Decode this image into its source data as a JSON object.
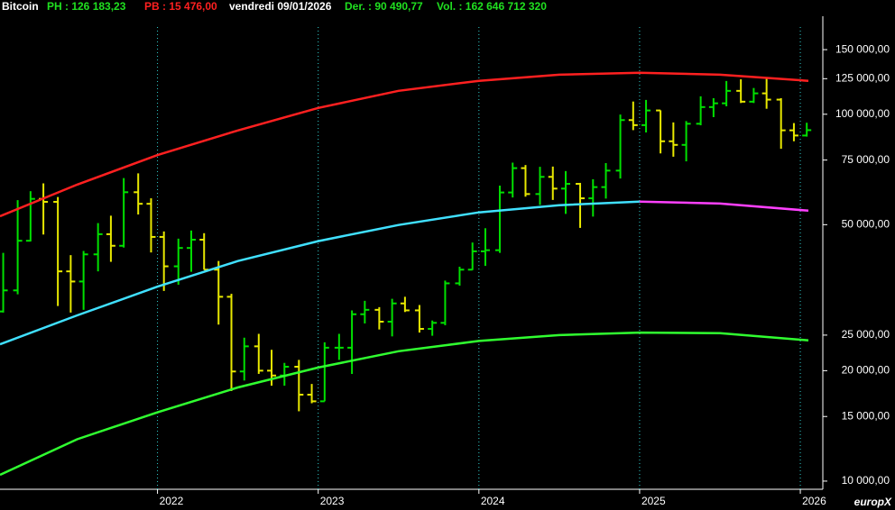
{
  "header": {
    "ticker": "Bitcoin",
    "high": "PH : 126 183,23",
    "low": "PB : 15 476,00",
    "date": "vendredi 09/01/2026",
    "last": "Der. : 90 490,77",
    "volume": "Vol. : 162 646 712 320"
  },
  "logo": "europX",
  "chart_data": {
    "type": "ohlc",
    "log_scale": true,
    "grid": true,
    "up_color": "#00e000",
    "down_color": "#e8e800",
    "xlim": [
      2021.02,
      2026.14
    ],
    "xticks": [
      2022,
      2023,
      2024,
      2025,
      2026
    ],
    "ylim": [
      9500,
      185000
    ],
    "yticks": [
      {
        "value": 10000,
        "label": "10 000,00"
      },
      {
        "value": 15000,
        "label": "15 000,00"
      },
      {
        "value": 20000,
        "label": "20 000,00"
      },
      {
        "value": 25000,
        "label": "25 000,00"
      },
      {
        "value": 50000,
        "label": "50 000,00"
      },
      {
        "value": 75000,
        "label": "75 000,00"
      },
      {
        "value": 100000,
        "label": "100 000,00"
      },
      {
        "value": 125000,
        "label": "125 000,00"
      },
      {
        "value": 150000,
        "label": "150 000,00"
      }
    ],
    "x": [
      2021.04,
      2021.13,
      2021.21,
      2021.29,
      2021.38,
      2021.46,
      2021.54,
      2021.63,
      2021.71,
      2021.79,
      2021.88,
      2021.96,
      2022.04,
      2022.13,
      2022.21,
      2022.29,
      2022.38,
      2022.46,
      2022.54,
      2022.63,
      2022.71,
      2022.79,
      2022.88,
      2022.96,
      2023.04,
      2023.13,
      2023.21,
      2023.29,
      2023.38,
      2023.46,
      2023.54,
      2023.63,
      2023.71,
      2023.79,
      2023.88,
      2023.96,
      2024.04,
      2024.13,
      2024.21,
      2024.29,
      2024.38,
      2024.46,
      2024.54,
      2024.63,
      2024.71,
      2024.79,
      2024.88,
      2024.96,
      2025.04,
      2025.13,
      2025.21,
      2025.29,
      2025.38,
      2025.46,
      2025.54,
      2025.63,
      2025.71,
      2025.79,
      2025.88,
      2025.96,
      2026.04
    ],
    "open": [
      29000,
      33100,
      45200,
      58800,
      57700,
      37300,
      35000,
      41500,
      47100,
      43800,
      61300,
      57000,
      46300,
      38500,
      43200,
      45500,
      37700,
      31800,
      19900,
      23300,
      20000,
      19400,
      20500,
      17200,
      16500,
      23100,
      23100,
      28500,
      29300,
      27200,
      30500,
      29200,
      26000,
      27000,
      34600,
      37700,
      42300,
      42600,
      61200,
      71300,
      60600,
      67500,
      62700,
      64600,
      59000,
      63300,
      70200,
      96400,
      93400,
      102400,
      84400,
      82500,
      94200,
      104600,
      107100,
      115800,
      108200,
      114000,
      109600,
      90400,
      87500
    ],
    "high": [
      41900,
      58300,
      61700,
      64800,
      59500,
      41300,
      42400,
      50500,
      52900,
      67000,
      69000,
      59000,
      47900,
      45800,
      48200,
      47400,
      39800,
      32400,
      24600,
      25200,
      22800,
      21000,
      21400,
      18400,
      23900,
      25200,
      29200,
      31000,
      29800,
      31400,
      31800,
      30200,
      27400,
      35200,
      38400,
      44700,
      48900,
      63900,
      73800,
      72700,
      71900,
      72000,
      70000,
      65000,
      66500,
      73600,
      99800,
      108300,
      109400,
      102500,
      95000,
      95800,
      111900,
      110600,
      123200,
      124500,
      117900,
      126200,
      110600,
      94600,
      94800
    ],
    "low": [
      28800,
      32300,
      45000,
      47000,
      30000,
      28800,
      29300,
      37300,
      39600,
      43300,
      53300,
      42000,
      33000,
      34300,
      37200,
      37700,
      26700,
      17600,
      18800,
      19600,
      18200,
      18200,
      15500,
      16300,
      16500,
      21400,
      19600,
      26900,
      25900,
      24800,
      28900,
      25400,
      24900,
      26600,
      34100,
      37600,
      38600,
      41900,
      59300,
      59600,
      56600,
      58400,
      53500,
      49000,
      52600,
      58900,
      66800,
      90500,
      89200,
      78200,
      76600,
      74400,
      93300,
      98200,
      105100,
      107300,
      107300,
      103500,
      80500,
      84400,
      86900
    ],
    "close": [
      33100,
      45200,
      58800,
      57700,
      37300,
      35000,
      41500,
      47100,
      43800,
      61300,
      57000,
      46300,
      38500,
      43200,
      45500,
      37700,
      31800,
      19900,
      23300,
      20000,
      19400,
      20500,
      17200,
      16500,
      23100,
      23100,
      28500,
      29300,
      27200,
      30500,
      29200,
      26000,
      27000,
      34600,
      37700,
      42300,
      42600,
      61200,
      71300,
      60600,
      67500,
      62700,
      64600,
      59000,
      63300,
      70200,
      96400,
      93400,
      102400,
      84400,
      82500,
      94200,
      104600,
      107100,
      115800,
      108200,
      114000,
      109600,
      90400,
      87500,
      90500
    ],
    "curve_x": [
      2021.02,
      2021.5,
      2022,
      2022.5,
      2023,
      2023.5,
      2024,
      2024.5,
      2025,
      2025.5,
      2026.05
    ],
    "curves": [
      {
        "color": "#ff2020",
        "values": [
          52700,
          64300,
          77400,
          90300,
          104000,
          115800,
          123300,
          128200,
          129800,
          128200,
          123300
        ]
      },
      {
        "color": "#40e0ff",
        "values": [
          23600,
          28300,
          33900,
          39800,
          45100,
          49900,
          54000,
          56500,
          57800,
          null,
          null
        ]
      },
      {
        "color": "#ff40ff",
        "values": [
          null,
          null,
          null,
          null,
          null,
          null,
          null,
          null,
          57800,
          57100,
          54600
        ]
      },
      {
        "color": "#30ff30",
        "values": [
          10400,
          13000,
          15400,
          18000,
          20400,
          22600,
          24100,
          25000,
          25400,
          25300,
          24200
        ]
      }
    ]
  }
}
